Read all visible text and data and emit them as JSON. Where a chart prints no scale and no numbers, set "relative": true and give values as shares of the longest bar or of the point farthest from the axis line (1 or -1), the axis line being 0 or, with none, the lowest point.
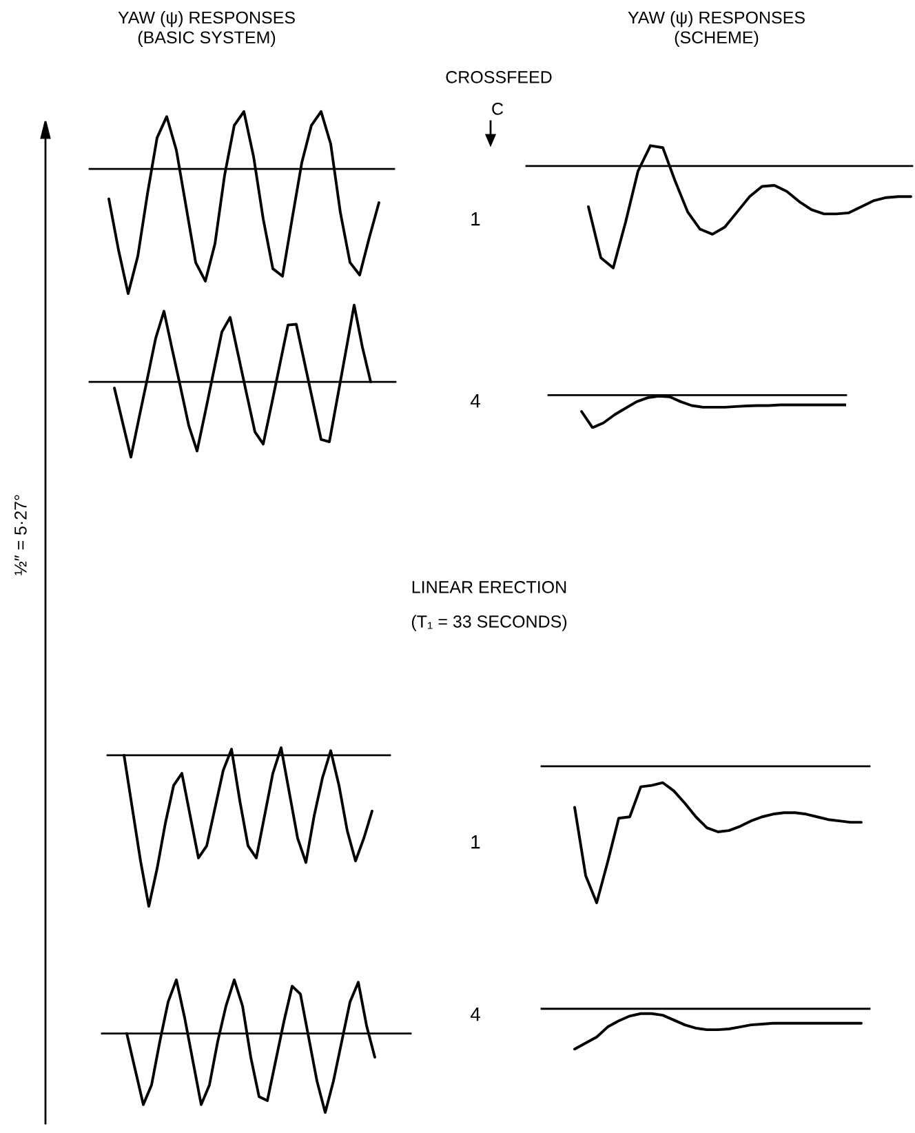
{
  "chart_data": [
    {
      "type": "line",
      "title": "YAW (ψ) RESPONSES\n(BASIC SYSTEM)",
      "relative": true,
      "color": "#000000",
      "categories": [
        null,
        null,
        null,
        null,
        null,
        null,
        null,
        null,
        null,
        null,
        null,
        null,
        null,
        null,
        null,
        null,
        null,
        null,
        null,
        null,
        null,
        null,
        null,
        null,
        null,
        null,
        null,
        null,
        null
      ],
      "values": [
        -0.24,
        -0.65,
        -1.0,
        -0.7,
        -0.2,
        0.25,
        0.42,
        0.15,
        -0.3,
        -0.75,
        -0.9,
        -0.6,
        -0.05,
        0.35,
        0.46,
        0.1,
        -0.4,
        -0.8,
        -0.86,
        -0.4,
        0.05,
        0.35,
        0.46,
        0.2,
        -0.35,
        -0.75,
        -0.85,
        -0.55,
        -0.27
      ]
    },
    {
      "type": "line",
      "title": "YAW (ψ) RESPONSES\n(SCHEME)",
      "ylabel": "1",
      "annotations": [
        "CROSSFEED",
        "C"
      ],
      "relative": true,
      "color": "#000000",
      "categories": [
        null,
        null,
        null,
        null,
        null,
        null,
        null,
        null,
        null,
        null,
        null,
        null,
        null,
        null,
        null,
        null,
        null,
        null,
        null,
        null,
        null,
        null,
        null,
        null,
        null,
        null,
        null
      ],
      "values": [
        -0.4,
        -0.9,
        -1.0,
        -0.55,
        -0.05,
        0.2,
        0.18,
        -0.15,
        -0.45,
        -0.62,
        -0.67,
        -0.6,
        -0.45,
        -0.3,
        -0.2,
        -0.19,
        -0.25,
        -0.35,
        -0.43,
        -0.47,
        -0.47,
        -0.46,
        -0.4,
        -0.34,
        -0.31,
        -0.3,
        -0.3
      ]
    },
    {
      "type": "line",
      "relative": true,
      "color": "#000000",
      "categories": [
        null,
        null,
        null,
        null,
        null,
        null,
        null,
        null,
        null,
        null,
        null,
        null,
        null,
        null,
        null,
        null,
        null,
        null,
        null,
        null,
        null,
        null,
        null,
        null,
        null,
        null,
        null,
        null,
        null,
        null,
        null,
        null
      ],
      "values": [
        -0.08,
        -0.53,
        -0.98,
        -0.46,
        0.05,
        0.57,
        0.92,
        0.42,
        -0.07,
        -0.57,
        -0.9,
        -0.39,
        0.13,
        0.65,
        0.84,
        0.34,
        -0.16,
        -0.65,
        -0.81,
        -0.3,
        0.22,
        0.74,
        0.75,
        0.25,
        -0.25,
        -0.75,
        -0.78,
        -0.19,
        0.4,
        1.0,
        0.45,
        0.0
      ]
    },
    {
      "type": "line",
      "ylabel": "4",
      "relative": true,
      "color": "#000000",
      "categories": [
        null,
        null,
        null,
        null,
        null,
        null,
        null,
        null,
        null,
        null,
        null,
        null,
        null,
        null,
        null,
        null,
        null,
        null,
        null,
        null,
        null,
        null,
        null,
        null,
        null
      ],
      "values": [
        -0.5,
        -1.0,
        -0.85,
        -0.6,
        -0.4,
        -0.2,
        -0.08,
        -0.03,
        -0.05,
        -0.2,
        -0.32,
        -0.37,
        -0.37,
        -0.37,
        -0.35,
        -0.33,
        -0.32,
        -0.32,
        -0.3,
        -0.3,
        -0.3,
        -0.3,
        -0.3,
        -0.3,
        -0.3
      ]
    },
    {
      "type": "line",
      "annotations": [
        "½″ = 5·27°"
      ],
      "relative": true,
      "color": "#000000",
      "categories": [
        null,
        null,
        null,
        null,
        null,
        null,
        null,
        null,
        null,
        null,
        null,
        null,
        null,
        null,
        null,
        null,
        null,
        null,
        null,
        null,
        null,
        null,
        null,
        null,
        null,
        null,
        null,
        null,
        null,
        null,
        null
      ],
      "values": [
        0.0,
        -0.35,
        -0.7,
        -1.0,
        -0.75,
        -0.45,
        -0.2,
        -0.12,
        -0.4,
        -0.68,
        -0.6,
        -0.35,
        -0.1,
        0.04,
        -0.3,
        -0.6,
        -0.68,
        -0.4,
        -0.12,
        0.05,
        -0.25,
        -0.55,
        -0.71,
        -0.4,
        -0.15,
        0.03,
        -0.2,
        -0.5,
        -0.7,
        -0.55,
        -0.37
      ]
    },
    {
      "type": "line",
      "ylabel": "1",
      "annotations": [
        "LINEAR ERECTION",
        "(T₁ = 33 SECONDS)"
      ],
      "relative": true,
      "color": "#000000",
      "categories": [
        null,
        null,
        null,
        null,
        null,
        null,
        null,
        null,
        null,
        null,
        null,
        null,
        null,
        null,
        null,
        null,
        null,
        null,
        null,
        null,
        null,
        null,
        null,
        null,
        null,
        null,
        null
      ],
      "values": [
        -0.3,
        -0.8,
        -1.0,
        -0.7,
        -0.38,
        -0.37,
        -0.15,
        -0.14,
        -0.12,
        -0.18,
        -0.27,
        -0.37,
        -0.45,
        -0.48,
        -0.47,
        -0.44,
        -0.4,
        -0.37,
        -0.35,
        -0.34,
        -0.34,
        -0.35,
        -0.37,
        -0.39,
        -0.4,
        -0.41,
        -0.41
      ]
    },
    {
      "type": "line",
      "relative": true,
      "color": "#000000",
      "categories": [
        null,
        null,
        null,
        null,
        null,
        null,
        null,
        null,
        null,
        null,
        null,
        null,
        null,
        null,
        null,
        null,
        null,
        null,
        null,
        null,
        null,
        null,
        null,
        null,
        null,
        null,
        null,
        null,
        null,
        null,
        null
      ],
      "values": [
        0.0,
        -0.45,
        -0.9,
        -0.65,
        -0.1,
        0.4,
        0.68,
        0.2,
        -0.35,
        -0.9,
        -0.65,
        -0.1,
        0.35,
        0.68,
        0.35,
        -0.3,
        -0.8,
        -0.85,
        -0.35,
        0.15,
        0.6,
        0.5,
        -0.05,
        -0.6,
        -1.0,
        -0.6,
        -0.1,
        0.4,
        0.65,
        0.1,
        -0.3
      ]
    },
    {
      "type": "line",
      "ylabel": "4",
      "relative": true,
      "color": "#000000",
      "categories": [
        null,
        null,
        null,
        null,
        null,
        null,
        null,
        null,
        null,
        null,
        null,
        null,
        null,
        null,
        null,
        null,
        null,
        null,
        null,
        null,
        null,
        null,
        null,
        null,
        null,
        null,
        null
      ],
      "values": [
        -1.0,
        -0.85,
        -0.7,
        -0.45,
        -0.3,
        -0.18,
        -0.12,
        -0.12,
        -0.16,
        -0.28,
        -0.4,
        -0.48,
        -0.52,
        -0.52,
        -0.5,
        -0.45,
        -0.4,
        -0.38,
        -0.36,
        -0.36,
        -0.36,
        -0.36,
        -0.36,
        -0.36,
        -0.36,
        -0.36,
        -0.36
      ]
    }
  ]
}
